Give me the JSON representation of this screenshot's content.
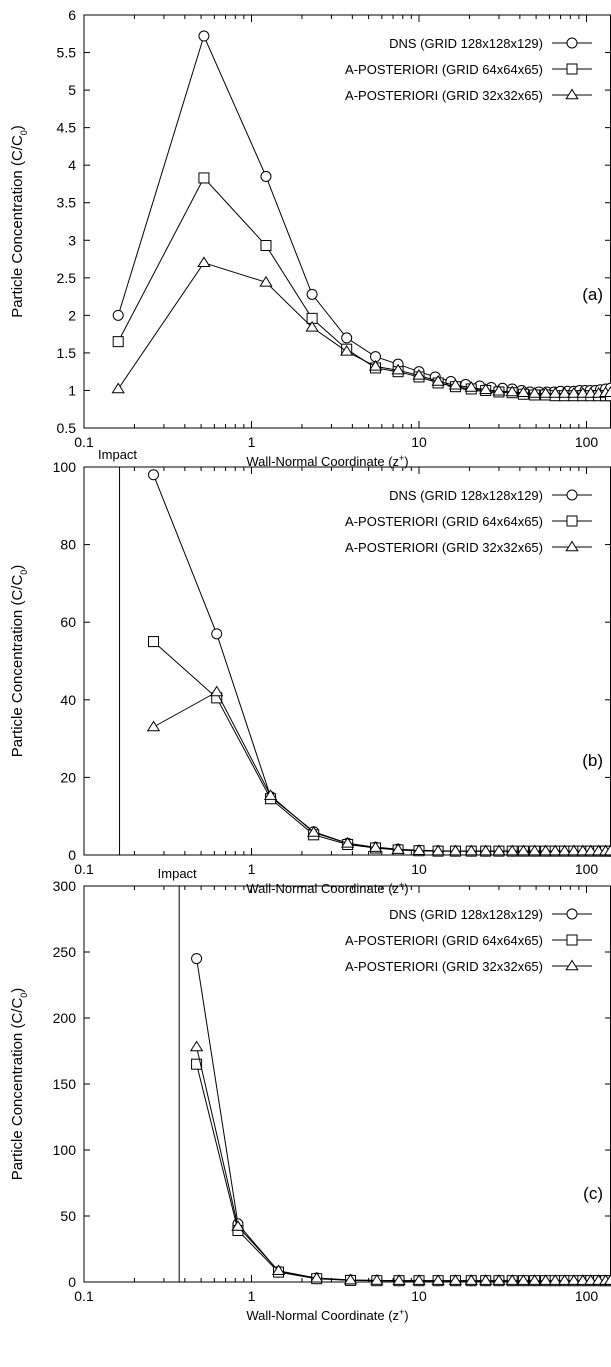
{
  "chart_data": [
    {
      "type": "line",
      "xscale": "log",
      "xlim": [
        0.1,
        140
      ],
      "ylim": [
        0.5,
        6
      ],
      "yticks": [
        "0.5",
        "1",
        "1.5",
        "2",
        "2.5",
        "3",
        "3.5",
        "4",
        "4.5",
        "5",
        "5.5",
        "6"
      ],
      "xticks": [
        "0.1",
        "1",
        "10",
        "100"
      ],
      "xlabel": "Wall-Normal Coordinate (z+)",
      "ylabel": "Particle Concentration (C/C0)",
      "panel_label": "(a)",
      "impact_label": "",
      "impact_x": null,
      "legend_position": "top-right",
      "series": [
        {
          "name": "DNS (GRID 128x128x129)",
          "marker": "circle",
          "x": [
            0.16,
            0.52,
            1.22,
            2.3,
            3.7,
            5.5,
            7.5,
            10,
            12.5,
            15.5,
            19,
            23,
            27,
            31.5,
            36,
            41,
            46,
            52,
            58,
            64,
            70,
            77,
            84,
            91,
            98,
            105,
            113,
            121,
            130,
            139
          ],
          "y": [
            2.0,
            5.72,
            3.85,
            2.28,
            1.7,
            1.45,
            1.35,
            1.25,
            1.18,
            1.12,
            1.08,
            1.06,
            1.04,
            1.03,
            1.02,
            1.0,
            0.98,
            0.98,
            0.98,
            0.98,
            0.99,
            0.99,
            0.99,
            1.0,
            1.0,
            1.0,
            1.0,
            1.01,
            1.02,
            1.03
          ]
        },
        {
          "name": "A-POSTERIORI (GRID 64x64x65)",
          "marker": "square",
          "x": [
            0.16,
            0.52,
            1.22,
            2.3,
            3.7,
            5.5,
            7.5,
            10,
            13,
            16.5,
            20.5,
            25,
            30,
            36,
            42,
            49,
            57,
            65,
            74,
            84,
            95,
            106,
            118,
            130,
            139
          ],
          "y": [
            1.65,
            3.83,
            2.93,
            1.96,
            1.55,
            1.3,
            1.25,
            1.18,
            1.1,
            1.05,
            1.02,
            1.0,
            0.98,
            0.97,
            0.95,
            0.94,
            0.94,
            0.93,
            0.93,
            0.93,
            0.93,
            0.93,
            0.93,
            0.93,
            0.93
          ]
        },
        {
          "name": "A-POSTERIORI (GRID 32x32x65)",
          "marker": "triangle",
          "x": [
            0.16,
            0.52,
            1.22,
            2.3,
            3.7,
            5.5,
            7.5,
            10,
            13,
            16.5,
            20.5,
            25,
            30,
            36,
            42,
            49,
            57,
            65,
            74,
            84,
            95,
            106,
            118,
            130,
            139
          ],
          "y": [
            1.02,
            2.7,
            2.44,
            1.84,
            1.52,
            1.32,
            1.27,
            1.2,
            1.12,
            1.07,
            1.04,
            1.01,
            0.99,
            0.98,
            0.97,
            0.96,
            0.96,
            0.96,
            0.96,
            0.96,
            0.96,
            0.96,
            0.96,
            0.97,
            0.97
          ]
        }
      ]
    },
    {
      "type": "line",
      "xscale": "log",
      "xlim": [
        0.1,
        140
      ],
      "ylim": [
        0,
        100
      ],
      "yticks": [
        "0",
        "20",
        "40",
        "60",
        "80",
        "100"
      ],
      "xticks": [
        "0.1",
        "1",
        "10",
        "100"
      ],
      "xlabel": "Wall-Normal Coordinate (z+)",
      "ylabel": "Particle Concentration (C/C0)",
      "panel_label": "(b)",
      "impact_label": "Impact",
      "impact_x": 0.163,
      "legend_position": "top-right",
      "series": [
        {
          "name": "DNS (GRID 128x128x129)",
          "marker": "circle",
          "x": [
            0.26,
            0.62,
            1.3,
            2.35,
            3.75,
            5.5,
            7.5,
            10,
            13,
            16.5,
            20.5,
            25,
            30,
            36,
            42,
            49,
            57,
            65,
            74,
            84,
            95,
            106,
            118,
            130,
            139
          ],
          "y": [
            98,
            57,
            15,
            6,
            3,
            2,
            1.5,
            1.2,
            1.1,
            1.0,
            1.0,
            1.0,
            1.0,
            1.0,
            1.0,
            1.0,
            1.0,
            1.0,
            1.0,
            1.0,
            1.0,
            1.0,
            1.0,
            1.0,
            1.0
          ]
        },
        {
          "name": "A-POSTERIORI (GRID 64x64x65)",
          "marker": "square",
          "x": [
            0.26,
            0.62,
            1.3,
            2.35,
            3.75,
            5.5,
            7.5,
            10,
            13,
            16.5,
            20.5,
            25,
            30,
            36,
            42,
            49,
            57,
            65,
            74,
            84,
            95,
            106,
            118,
            130,
            139
          ],
          "y": [
            55,
            40.5,
            14.5,
            5.2,
            2.7,
            1.8,
            1.3,
            1.1,
            1.0,
            1.0,
            1.0,
            1.0,
            1.0,
            1.0,
            1.0,
            1.0,
            1.0,
            1.0,
            1.0,
            1.0,
            1.0,
            1.0,
            1.0,
            1.0,
            1.0
          ]
        },
        {
          "name": "A-POSTERIORI (GRID 32x32x65)",
          "marker": "triangle",
          "x": [
            0.26,
            0.62,
            1.3,
            2.35,
            3.75,
            5.5,
            7.5,
            10,
            13,
            16.5,
            20.5,
            25,
            30,
            36,
            42,
            49,
            57,
            65,
            74,
            84,
            95,
            106,
            118,
            130,
            139
          ],
          "y": [
            33,
            42,
            15.3,
            5.8,
            3.0,
            1.9,
            1.4,
            1.1,
            1.0,
            1.0,
            1.0,
            1.0,
            1.0,
            1.0,
            1.0,
            1.0,
            1.0,
            1.0,
            1.0,
            1.0,
            1.0,
            1.0,
            1.0,
            1.0,
            1.0
          ]
        }
      ]
    },
    {
      "type": "line",
      "xscale": "log",
      "xlim": [
        0.1,
        140
      ],
      "ylim": [
        0,
        300
      ],
      "yticks": [
        "0",
        "50",
        "100",
        "150",
        "200",
        "250",
        "300"
      ],
      "xticks": [
        "0.1",
        "1",
        "10",
        "100"
      ],
      "xlabel": "Wall-Normal Coordinate (z+)",
      "ylabel": "Particle Concentration (C/C0)",
      "panel_label": "(c)",
      "impact_label": "Impact",
      "impact_x": 0.37,
      "legend_position": "top-right",
      "series": [
        {
          "name": "DNS (GRID 128x128x129)",
          "marker": "circle",
          "x": [
            0.47,
            0.83,
            1.45,
            2.45,
            3.9,
            5.6,
            7.6,
            10,
            13,
            16.5,
            20.5,
            25,
            30,
            36,
            42,
            49,
            57,
            65,
            74,
            84,
            95,
            106,
            118,
            130,
            139
          ],
          "y": [
            245,
            44,
            8,
            3,
            1.5,
            1.2,
            1,
            1,
            1,
            1,
            1,
            1,
            1,
            1,
            1,
            1,
            1,
            1,
            1,
            1,
            1,
            1,
            1,
            1,
            1
          ]
        },
        {
          "name": "A-POSTERIORI (GRID 64x64x65)",
          "marker": "square",
          "x": [
            0.47,
            0.83,
            1.45,
            2.45,
            3.9,
            5.6,
            7.6,
            10,
            13,
            16.5,
            20.5,
            25,
            30,
            36,
            42,
            49,
            57,
            65,
            74,
            84,
            95,
            106,
            118,
            130,
            139
          ],
          "y": [
            165,
            39,
            7.5,
            2.5,
            1.2,
            1,
            1,
            1,
            1,
            1,
            1,
            1,
            1,
            1,
            1,
            1,
            1,
            1,
            1,
            1,
            1,
            1,
            1,
            1,
            1
          ]
        },
        {
          "name": "A-POSTERIORI (GRID 32x32x65)",
          "marker": "triangle",
          "x": [
            0.47,
            0.83,
            1.45,
            2.45,
            3.9,
            5.6,
            7.6,
            10,
            13,
            16.5,
            20.5,
            25,
            30,
            36,
            42,
            49,
            57,
            65,
            74,
            84,
            95,
            106,
            118,
            130,
            139
          ],
          "y": [
            178,
            42,
            8.5,
            2.8,
            1.4,
            1.1,
            1,
            1,
            1,
            1,
            1,
            1,
            1,
            1,
            1,
            1,
            1,
            1,
            1,
            1,
            1,
            1,
            1,
            1,
            1
          ]
        }
      ]
    }
  ]
}
